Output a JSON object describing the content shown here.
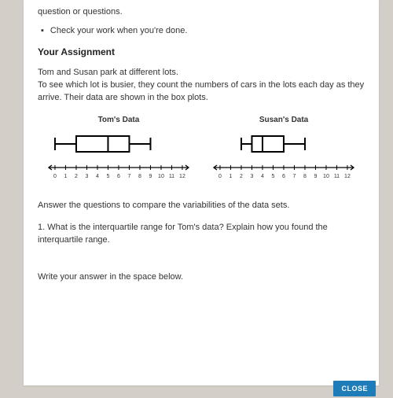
{
  "cutoff_line": "question or questions.",
  "bullet_item": "Check your work when you're done.",
  "header": "Your Assignment",
  "intro_line1": "Tom and Susan park at different lots.",
  "intro_line2": "To see which lot is busier, they count the numbers of cars in the lots each day as they arrive. Their data are shown in the box plots.",
  "tom": {
    "title": "Tom's Data",
    "min": 0,
    "q1": 2,
    "median": 5,
    "q3": 7,
    "max": 9,
    "axis_min": 0,
    "axis_max": 12
  },
  "susan": {
    "title": "Susan's Data",
    "min": 2,
    "q1": 3,
    "median": 4,
    "q3": 6,
    "max": 8,
    "axis_min": 0,
    "axis_max": 12
  },
  "axis_ticks": [
    "0",
    "1",
    "2",
    "3",
    "4",
    "5",
    "6",
    "7",
    "8",
    "9",
    "10",
    "11",
    "12"
  ],
  "compare_text": "Answer the questions to compare the variabilities of the data sets.",
  "q1_text": "1. What is the interquartile range for Tom's data? Explain how you found the interquartile range.",
  "write_prompt": "Write your answer in the space below.",
  "close_label": "CLOSE",
  "colors": {
    "box_stroke": "#000000",
    "axis_stroke": "#000000",
    "tick_text": "#333333"
  }
}
